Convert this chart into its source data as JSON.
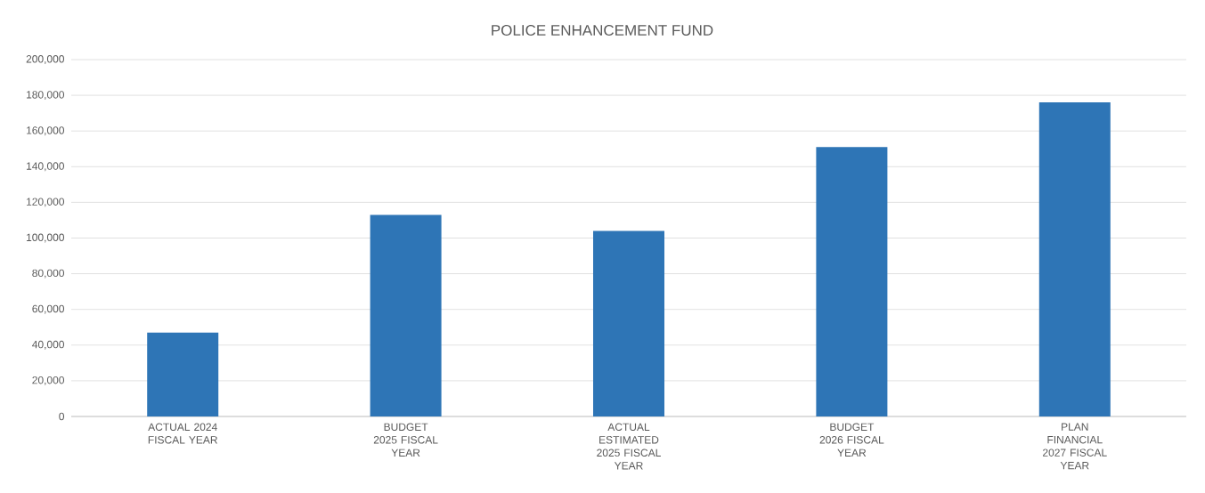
{
  "chart_data": {
    "type": "bar",
    "title": "POLICE ENHANCEMENT FUND",
    "categories": [
      "ACTUAL 2024 FISCAL YEAR",
      "BUDGET 2025 FISCAL YEAR",
      "ACTUAL ESTIMATED 2025 FISCAL YEAR",
      "BUDGET 2026 FISCAL YEAR",
      "PLAN FINANCIAL 2027 FISCAL YEAR"
    ],
    "values": [
      47000,
      113000,
      104000,
      151000,
      176000
    ],
    "color": "#2e75b6",
    "ylim": [
      0,
      200000
    ],
    "yticks": [
      {
        "value": 0,
        "label": "0"
      },
      {
        "value": 20000,
        "label": "20,000"
      },
      {
        "value": 40000,
        "label": "40,000"
      },
      {
        "value": 60000,
        "label": "60,000"
      },
      {
        "value": 80000,
        "label": "80,000"
      },
      {
        "value": 100000,
        "label": "100,000"
      },
      {
        "value": 120000,
        "label": "120,000"
      },
      {
        "value": 140000,
        "label": "140,000"
      },
      {
        "value": 160000,
        "label": "160,000"
      },
      {
        "value": 180000,
        "label": "180,000"
      },
      {
        "value": 200000,
        "label": "200,000"
      }
    ],
    "grid": "y"
  }
}
